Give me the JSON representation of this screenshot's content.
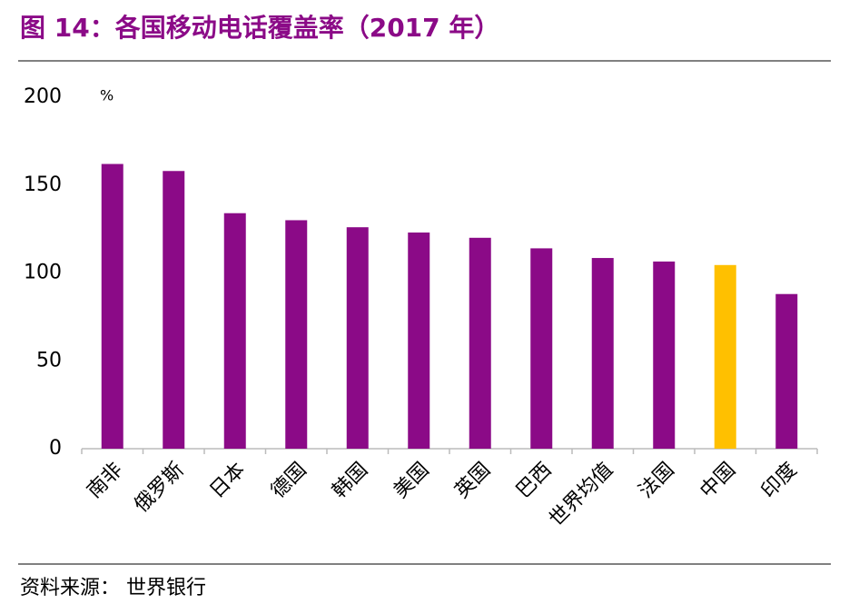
{
  "chart_data": {
    "type": "bar",
    "title": "图 14：各国移动电话覆盖率（2017 年）",
    "unit": "%",
    "source": "资料来源： 世界银行",
    "categories": [
      "南非",
      "俄罗斯",
      "日本",
      "德国",
      "韩国",
      "美国",
      "英国",
      "巴西",
      "世界均值",
      "法国",
      "中国",
      "印度"
    ],
    "values": [
      162,
      158,
      134,
      130,
      126,
      123,
      120,
      114,
      108.5,
      106.5,
      104.5,
      88
    ],
    "colors": [
      "#8b0a87",
      "#8b0a87",
      "#8b0a87",
      "#8b0a87",
      "#8b0a87",
      "#8b0a87",
      "#8b0a87",
      "#8b0a87",
      "#8b0a87",
      "#8b0a87",
      "#ffc000",
      "#8b0a87"
    ],
    "ylim": [
      0,
      200
    ],
    "yticks": [
      0,
      50,
      100,
      150,
      200
    ],
    "grid": false
  }
}
